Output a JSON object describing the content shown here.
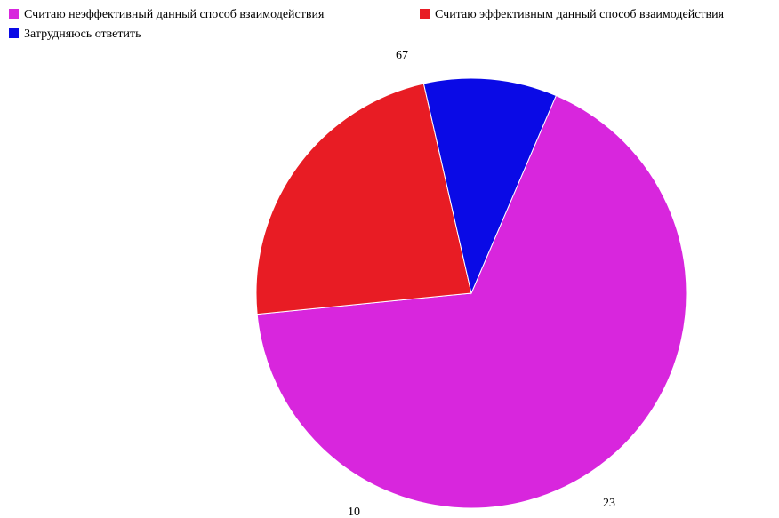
{
  "chart_data": {
    "type": "pie",
    "categories": [
      "Считаю неэффективный данный способ взаимодействия",
      "Считаю эффективным данный способ взаимодействия",
      "Затрудняюсь ответить"
    ],
    "values": [
      67,
      23,
      10
    ],
    "colors": [
      "#d826dd",
      "#e81c24",
      "#0a0ae6"
    ],
    "title": "",
    "legend_placement": "top-left",
    "data_labels": true
  }
}
